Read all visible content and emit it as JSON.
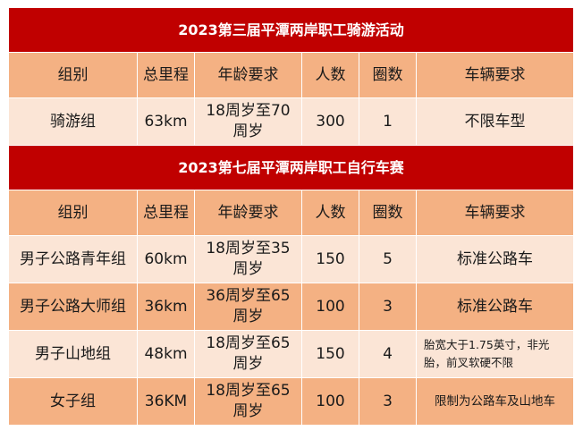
{
  "section1": {
    "title": "2023第三届平潭两岸职工骑游活动",
    "headers": [
      "组别",
      "总里程",
      "年龄要求",
      "人数",
      "圈数",
      "车辆要求"
    ],
    "rows": [
      [
        "骑游组",
        "63km",
        "18周岁至70周岁",
        "300",
        "1",
        "不限车型"
      ]
    ]
  },
  "section2": {
    "title": "2023第七届平潭两岸职工自行车赛",
    "headers": [
      "组别",
      "总里程",
      "年龄要求",
      "人数",
      "圈数",
      "车辆要求"
    ],
    "rows": [
      [
        "男子公路青年组",
        "60km",
        "18周岁至35周岁",
        "150",
        "5",
        "标准公路车"
      ],
      [
        "男子公路大师组",
        "36km",
        "36周岁至65周岁",
        "100",
        "3",
        "标准公路车"
      ],
      [
        "男子山地组",
        "48km",
        "18周岁至65周岁",
        "150",
        "4",
        "胎宽大于1.75英寸，非光胎，前叉软硬不限"
      ],
      [
        "女子组",
        "36KM",
        "18周岁至65周岁",
        "100",
        "3",
        "限制为公路车及山地车"
      ]
    ]
  },
  "colors": {
    "title_bg": "#c00000",
    "header_bg": "#f4b183",
    "row_light": "#fbe5d6",
    "row_dark": "#f4b183"
  }
}
